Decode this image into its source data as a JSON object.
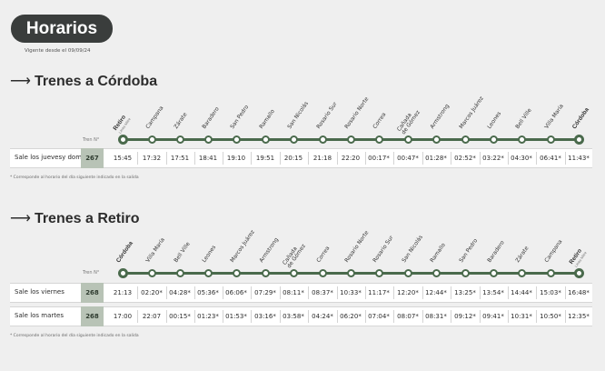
{
  "header": {
    "title": "Horarios",
    "vigente": "Vigente desde el 09/09/24"
  },
  "sections": [
    {
      "arrow": "⟶",
      "title": "Trenes a Córdoba",
      "tren_label": "Tren N°",
      "stations": [
        {
          "name": "Retiro",
          "sub": "Línea Mitre",
          "end": true
        },
        {
          "name": "Campana"
        },
        {
          "name": "Zárate"
        },
        {
          "name": "Baradero"
        },
        {
          "name": "San Pedro"
        },
        {
          "name": "Ramallo"
        },
        {
          "name": "San Nicolás"
        },
        {
          "name": "Rosario Sur"
        },
        {
          "name": "Rosario Norte"
        },
        {
          "name": "Correa"
        },
        {
          "name": "Cañada",
          "name2": "de Gómez"
        },
        {
          "name": "Armstrong"
        },
        {
          "name": "Marcos Juárez"
        },
        {
          "name": "Leones"
        },
        {
          "name": "Bell Ville"
        },
        {
          "name": "Villa María"
        },
        {
          "name": "Córdoba",
          "end": true
        }
      ],
      "rows": [
        {
          "label": "Sale los jueves",
          "label2": "y domingos",
          "tren": "267",
          "times": [
            "15:45",
            "17:32",
            "17:51",
            "18:41",
            "19:10",
            "19:51",
            "20:15",
            "21:18",
            "22:20",
            "00:17*",
            "00:47*",
            "01:28*",
            "02:52*",
            "03:22*",
            "04:30*",
            "06:41*",
            "11:43*"
          ]
        }
      ],
      "footnote": "* Corresponde al horario del día siguiente indicado en la salida"
    },
    {
      "arrow": "⟶",
      "title": "Trenes a Retiro",
      "tren_label": "Tren N°",
      "stations": [
        {
          "name": "Córdoba",
          "end": true
        },
        {
          "name": "Villa María"
        },
        {
          "name": "Bell Ville"
        },
        {
          "name": "Leones"
        },
        {
          "name": "Marcos Juárez"
        },
        {
          "name": "Armstrong"
        },
        {
          "name": "Cañada",
          "name2": "de Gómez"
        },
        {
          "name": "Correa"
        },
        {
          "name": "Rosario Norte"
        },
        {
          "name": "Rosario Sur"
        },
        {
          "name": "San Nicolás"
        },
        {
          "name": "Ramallo"
        },
        {
          "name": "San Pedro"
        },
        {
          "name": "Baradero"
        },
        {
          "name": "Zárate"
        },
        {
          "name": "Campana"
        },
        {
          "name": "Retiro",
          "sub": "Línea Mitre",
          "end": true
        }
      ],
      "rows": [
        {
          "label": "Sale los viernes",
          "tren": "268",
          "times": [
            "21:13",
            "02:20*",
            "04:28*",
            "05:36*",
            "06:06*",
            "07:29*",
            "08:11*",
            "08:37*",
            "10:33*",
            "11:17*",
            "12:20*",
            "12:44*",
            "13:25*",
            "13:54*",
            "14:44*",
            "15:03*",
            "16:48*"
          ]
        },
        {
          "label": "Sale los martes",
          "tren": "268",
          "times": [
            "17:00",
            "22:07",
            "00:15*",
            "01:23*",
            "01:53*",
            "03:16*",
            "03:58*",
            "04:24*",
            "06:20*",
            "07:04*",
            "08:07*",
            "08:31*",
            "09:12*",
            "09:41*",
            "10:31*",
            "10:50*",
            "12:35*"
          ]
        }
      ],
      "footnote": "* Corresponde al horario del día siguiente indicado en la salida"
    }
  ]
}
